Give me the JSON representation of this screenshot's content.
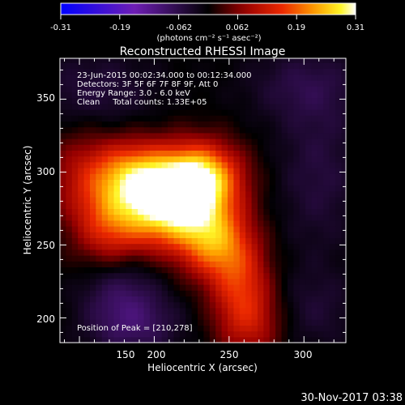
{
  "colorbar": {
    "ticks": [
      "-0.31",
      "-0.19",
      "-0.062",
      "0.062",
      "0.19",
      "0.31"
    ],
    "units_label": "(photons cm⁻² s⁻¹ asec⁻²)",
    "range": [
      -0.31,
      0.31
    ]
  },
  "chart_data": {
    "type": "heatmap",
    "title": "Reconstructed RHESSI Image",
    "xlabel": "Heliocentric X (arcsec)",
    "ylabel": "Heliocentric Y (arcsec)",
    "xlim": [
      137,
      328
    ],
    "ylim": [
      183,
      378
    ],
    "x_ticks": [
      150,
      200,
      250,
      300
    ],
    "y_ticks": [
      200,
      250,
      300,
      350
    ],
    "annotations": [
      "23-Jun-2015 00:02:34.000 to 00:12:34.000",
      "Detectors: 3F 5F 6F 7F 8F 9F, Att 0",
      "Energy Range: 3.0 - 6.0 keV",
      "Clean     Total counts: 1.33E+05"
    ],
    "peak_label": "Position of Peak = [210,278]",
    "peak": [
      210,
      278
    ],
    "sources": [
      {
        "x": 210,
        "y": 278,
        "amp": 0.31,
        "sx": 24,
        "sy": 20
      },
      {
        "x": 232,
        "y": 298,
        "amp": 0.22,
        "sx": 18,
        "sy": 16
      },
      {
        "x": 186,
        "y": 300,
        "amp": 0.16,
        "sx": 20,
        "sy": 16
      },
      {
        "x": 240,
        "y": 252,
        "amp": 0.17,
        "sx": 16,
        "sy": 18
      },
      {
        "x": 170,
        "y": 262,
        "amp": 0.12,
        "sx": 16,
        "sy": 22
      },
      {
        "x": 258,
        "y": 225,
        "amp": 0.12,
        "sx": 14,
        "sy": 22
      },
      {
        "x": 265,
        "y": 196,
        "amp": 0.09,
        "sx": 16,
        "sy": 18
      },
      {
        "x": 150,
        "y": 298,
        "amp": 0.07,
        "sx": 18,
        "sy": 24
      },
      {
        "x": 176,
        "y": 225,
        "amp": -0.07,
        "sx": 18,
        "sy": 18
      },
      {
        "x": 186,
        "y": 196,
        "amp": -0.08,
        "sx": 22,
        "sy": 16
      },
      {
        "x": 160,
        "y": 355,
        "amp": -0.05,
        "sx": 30,
        "sy": 20
      },
      {
        "x": 300,
        "y": 360,
        "amp": -0.05,
        "sx": 28,
        "sy": 18
      },
      {
        "x": 310,
        "y": 300,
        "amp": -0.05,
        "sx": 20,
        "sy": 40
      },
      {
        "x": 305,
        "y": 205,
        "amp": -0.04,
        "sx": 22,
        "sy": 20
      }
    ]
  },
  "footer": {
    "date": "30-Nov-2017 03:38"
  }
}
